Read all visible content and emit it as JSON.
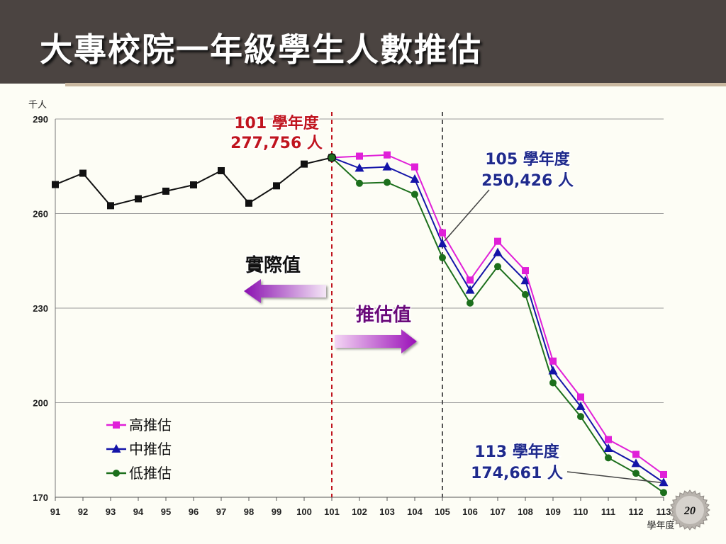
{
  "slide": {
    "title": "大專校院一年級學生人數推估",
    "page_number": "20"
  },
  "chart_data": {
    "type": "line",
    "y_unit_label": "千人",
    "xlabel": "學年度",
    "ylim": [
      170,
      290
    ],
    "yticks": [
      170,
      200,
      230,
      260,
      290
    ],
    "categories": [
      "91",
      "92",
      "93",
      "94",
      "95",
      "96",
      "97",
      "98",
      "99",
      "100",
      "101",
      "102",
      "103",
      "104",
      "105",
      "106",
      "107",
      "108",
      "109",
      "110",
      "111",
      "112",
      "113"
    ],
    "grid": "horizontal",
    "series": [
      {
        "key": "actual",
        "color": "#111111",
        "marker": "square",
        "x": [
          "91",
          "92",
          "93",
          "94",
          "95",
          "96",
          "97",
          "98",
          "99",
          "100",
          "101"
        ],
        "values": [
          269.2,
          272.8,
          262.5,
          264.7,
          267.1,
          269.1,
          273.6,
          263.3,
          268.8,
          275.7,
          277.756
        ]
      },
      {
        "key": "high",
        "name": "高推估",
        "color": "#e020d8",
        "marker": "square",
        "x": [
          "101",
          "102",
          "103",
          "104",
          "105",
          "106",
          "107",
          "108",
          "109",
          "110",
          "111",
          "112",
          "113"
        ],
        "values": [
          277.756,
          278.2,
          278.6,
          274.8,
          253.9,
          238.9,
          251.2,
          241.9,
          213.2,
          201.8,
          188.3,
          183.6,
          177.2
        ]
      },
      {
        "key": "mid",
        "name": "中推估",
        "color": "#1414a8",
        "marker": "triangle",
        "x": [
          "101",
          "102",
          "103",
          "104",
          "105",
          "106",
          "107",
          "108",
          "109",
          "110",
          "111",
          "112",
          "113"
        ],
        "values": [
          277.756,
          274.4,
          274.8,
          270.9,
          250.426,
          235.7,
          247.6,
          238.7,
          210.1,
          198.8,
          185.5,
          180.7,
          174.661
        ]
      },
      {
        "key": "low",
        "name": "低推估",
        "color": "#1c6f1c",
        "marker": "circle",
        "x": [
          "101",
          "102",
          "103",
          "104",
          "105",
          "106",
          "107",
          "108",
          "109",
          "110",
          "111",
          "112",
          "113"
        ],
        "values": [
          277.756,
          269.6,
          269.9,
          266.1,
          246.0,
          231.6,
          243.2,
          234.3,
          206.3,
          195.6,
          182.5,
          177.6,
          171.5
        ]
      }
    ],
    "reference_lines": [
      {
        "x": "101",
        "color": "#c0141e",
        "style": "dashed"
      },
      {
        "x": "105",
        "color": "#555555",
        "style": "dashed"
      }
    ],
    "annotations": {
      "a101": {
        "line1": "101 學年度",
        "line2": "277,756 人",
        "color": "#c0141e"
      },
      "a105": {
        "line1": "105 學年度",
        "line2": "250,426 人",
        "color": "#1f2a8c"
      },
      "a113": {
        "line1": "113 學年度",
        "line2": "174,661 人",
        "color": "#1f2a8c"
      }
    },
    "arrow_labels": {
      "actual": "實際值",
      "estimate": "推估值"
    },
    "legend_position": "bottom-left"
  }
}
